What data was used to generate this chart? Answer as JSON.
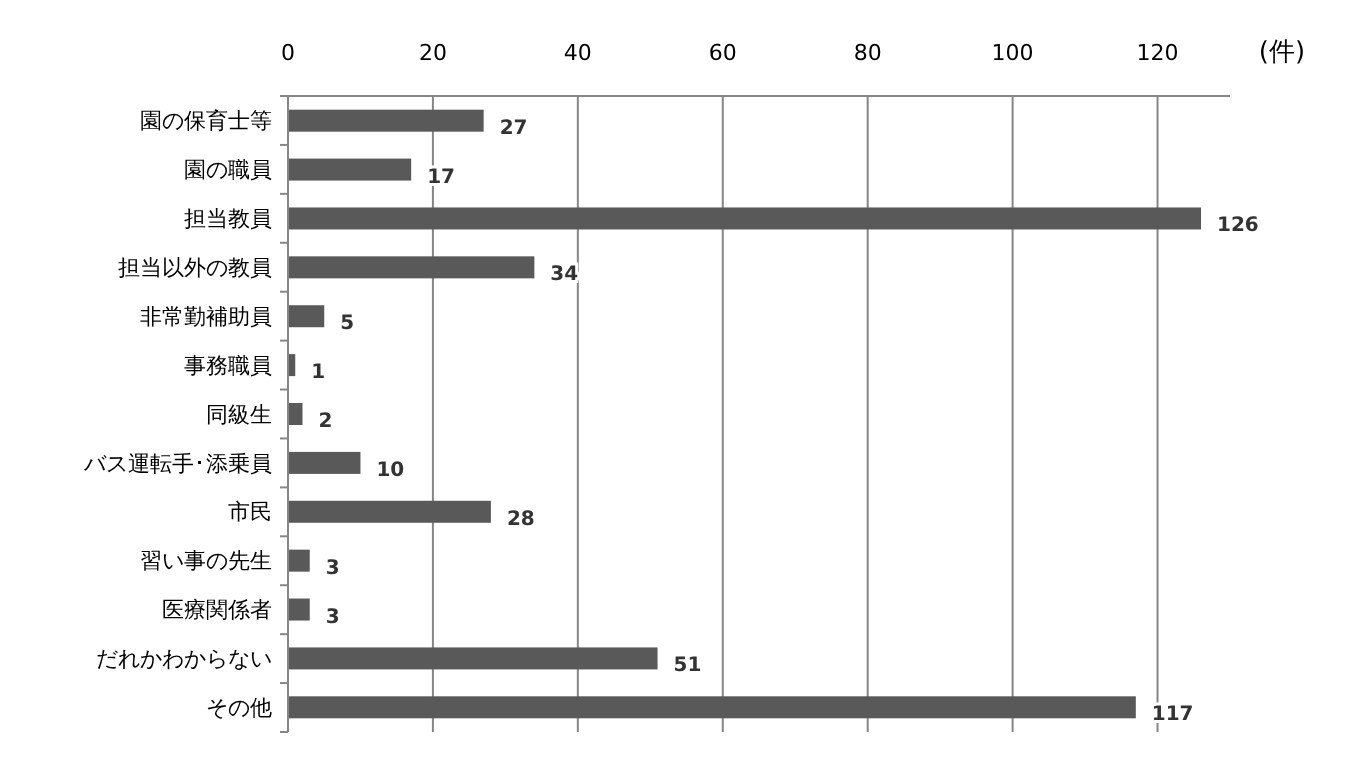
{
  "chart_data": {
    "type": "bar",
    "orientation": "horizontal",
    "xlabel": "(件)",
    "categories": [
      "園の保育士等",
      "園の職員",
      "担当教員",
      "担当以外の教員",
      "非常勤補助員",
      "事務職員",
      "同級生",
      "バス運転手･添乗員",
      "市民",
      "習い事の先生",
      "医療関係者",
      "だれかわからない",
      "その他"
    ],
    "values": [
      27,
      17,
      126,
      34,
      5,
      1,
      2,
      10,
      28,
      3,
      3,
      51,
      117
    ],
    "color": "#595959",
    "xlim": [
      0,
      130
    ],
    "xticks": [
      0,
      20,
      40,
      60,
      80,
      100,
      120
    ],
    "grid": "x",
    "data_labels": true
  }
}
